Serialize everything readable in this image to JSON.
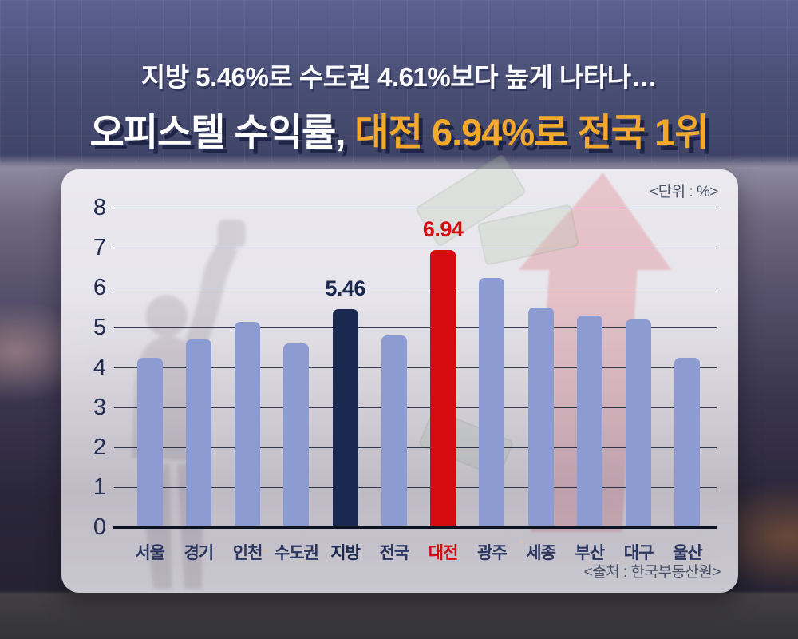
{
  "header": {
    "subtitle": "지방 5.46%로 수도권 4.61%보다 높게 나타나…",
    "title_prefix": "오피스텔 수익률, ",
    "title_highlight": "대전 6.94%로 전국 1위"
  },
  "panel": {
    "unit_note": "<단위 : %>",
    "source_note": "<출처 : 한국부동산원>"
  },
  "colors": {
    "bar_palette": {
      "blue": "#8C9BD2",
      "navy": "#1B2850",
      "red": "#D50B10"
    },
    "x_label_default": "#2A3560",
    "axis_text": "#242D50",
    "grid_line": "#161D33",
    "title_highlight": "#F3A92B",
    "title_shadow": "#1E2547",
    "panel_background": "#F2F1F5"
  },
  "chart_data": {
    "type": "bar",
    "title": "오피스텔 수익률, 대전 6.94%로 전국 1위",
    "subtitle": "지방 5.46%로 수도권 4.61%보다 높게 나타나…",
    "unit": "%",
    "source": "한국부동산원",
    "categories": [
      "서울",
      "경기",
      "인천",
      "수도권",
      "지방",
      "전국",
      "대전",
      "광주",
      "세종",
      "부산",
      "대구",
      "울산"
    ],
    "values": [
      4.25,
      4.7,
      5.15,
      4.61,
      5.46,
      4.8,
      6.94,
      6.25,
      5.5,
      5.3,
      5.2,
      4.25
    ],
    "bar_colors": [
      "blue",
      "blue",
      "blue",
      "blue",
      "navy",
      "blue",
      "red",
      "blue",
      "blue",
      "blue",
      "blue",
      "blue"
    ],
    "bar_labels": [
      "",
      "",
      "",
      "",
      "5.46",
      "",
      "6.94",
      "",
      "",
      "",
      "",
      ""
    ],
    "xlabel": "",
    "ylabel": "",
    "ylim": [
      0,
      8
    ],
    "ytick_step": 1,
    "grid": true,
    "legend_position": "none"
  }
}
